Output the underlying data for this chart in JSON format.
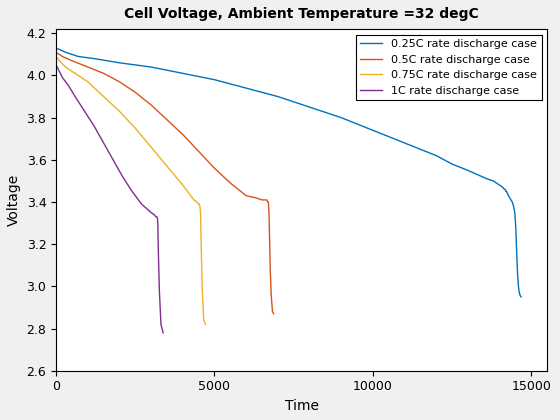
{
  "title": "Cell Voltage, Ambient Temperature =32 degC",
  "xlabel": "Time",
  "ylabel": "Voltage",
  "xlim": [
    0,
    15500
  ],
  "ylim": [
    2.6,
    4.22
  ],
  "xticks": [
    0,
    5000,
    10000,
    15000
  ],
  "yticks": [
    2.6,
    2.8,
    3.0,
    3.2,
    3.4,
    3.6,
    3.8,
    4.0,
    4.2
  ],
  "legend_labels": [
    "0.25C rate discharge case",
    "0.5C rate discharge case",
    "0.75C rate discharge case",
    "1C rate discharge case"
  ],
  "colors": [
    "#0072BD",
    "#D95319",
    "#EDB120",
    "#7E2F8E"
  ],
  "series": {
    "c025": {
      "color": "#0072BD",
      "x": [
        0,
        300,
        700,
        1200,
        2000,
        3000,
        4000,
        5000,
        6000,
        7000,
        8000,
        9000,
        10000,
        11000,
        12000,
        12500,
        13000,
        13300,
        13600,
        13800,
        14000,
        14100,
        14150,
        14180,
        14200,
        14220,
        14250,
        14280,
        14320,
        14360,
        14400,
        14440,
        14480,
        14510,
        14530,
        14550,
        14570,
        14590,
        14610,
        14640,
        14680
      ],
      "y": [
        4.13,
        4.11,
        4.09,
        4.08,
        4.06,
        4.04,
        4.01,
        3.98,
        3.94,
        3.9,
        3.85,
        3.8,
        3.74,
        3.68,
        3.62,
        3.58,
        3.55,
        3.53,
        3.51,
        3.5,
        3.48,
        3.47,
        3.46,
        3.46,
        3.45,
        3.45,
        3.44,
        3.43,
        3.42,
        3.41,
        3.4,
        3.38,
        3.35,
        3.28,
        3.2,
        3.12,
        3.05,
        3.01,
        2.98,
        2.96,
        2.95
      ]
    },
    "c05": {
      "color": "#D95319",
      "x": [
        0,
        200,
        500,
        1000,
        1500,
        2000,
        2500,
        3000,
        3500,
        4000,
        4500,
        5000,
        5500,
        6000,
        6300,
        6500,
        6600,
        6650,
        6680,
        6700,
        6720,
        6740,
        6760,
        6790,
        6830,
        6870
      ],
      "y": [
        4.11,
        4.09,
        4.07,
        4.04,
        4.01,
        3.97,
        3.92,
        3.86,
        3.79,
        3.72,
        3.64,
        3.56,
        3.49,
        3.43,
        3.42,
        3.41,
        3.41,
        3.41,
        3.4,
        3.4,
        3.35,
        3.22,
        3.08,
        2.96,
        2.88,
        2.87
      ]
    },
    "c075": {
      "color": "#EDB120",
      "x": [
        0,
        100,
        300,
        600,
        1000,
        1500,
        2000,
        2500,
        3000,
        3500,
        4000,
        4200,
        4350,
        4450,
        4500,
        4520,
        4540,
        4560,
        4580,
        4610,
        4660,
        4720
      ],
      "y": [
        4.09,
        4.07,
        4.04,
        4.01,
        3.97,
        3.9,
        3.83,
        3.75,
        3.66,
        3.57,
        3.48,
        3.44,
        3.41,
        3.4,
        3.39,
        3.39,
        3.38,
        3.35,
        3.2,
        3.0,
        2.84,
        2.82
      ]
    },
    "c1": {
      "color": "#7E2F8E",
      "x": [
        0,
        100,
        200,
        400,
        600,
        900,
        1200,
        1500,
        1800,
        2100,
        2400,
        2700,
        3000,
        3100,
        3150,
        3180,
        3200,
        3210,
        3230,
        3260,
        3310,
        3380
      ],
      "y": [
        4.05,
        4.02,
        3.99,
        3.95,
        3.9,
        3.83,
        3.76,
        3.68,
        3.6,
        3.52,
        3.45,
        3.39,
        3.35,
        3.34,
        3.33,
        3.33,
        3.32,
        3.3,
        3.15,
        2.98,
        2.82,
        2.78
      ]
    }
  },
  "figsize": [
    5.6,
    4.2
  ],
  "dpi": 100
}
